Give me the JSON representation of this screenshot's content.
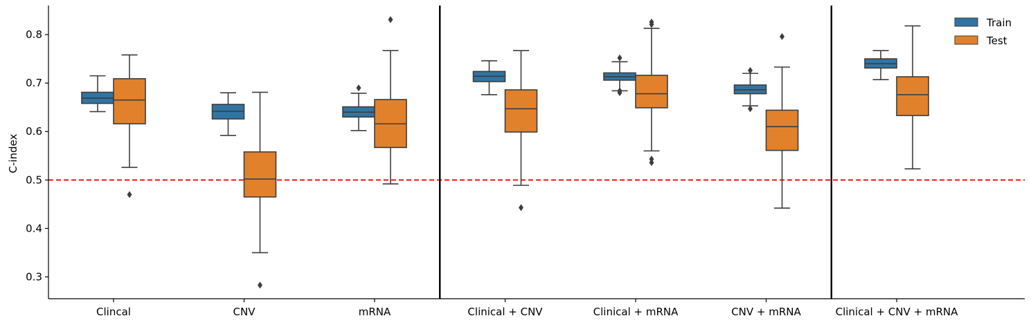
{
  "chart_data": {
    "type": "box",
    "ylabel": "C-index",
    "xlabel": "",
    "ylim": [
      0.255,
      0.86
    ],
    "yticks": [
      "0.3",
      "0.4",
      "0.5",
      "0.6",
      "0.7",
      "0.8"
    ],
    "categories": [
      "Clincal",
      "CNV",
      "mRNA",
      "Clinical + CNV",
      "Clinical + mRNA",
      "CNV + mRNA",
      "Clinical + CNV + mRNA"
    ],
    "reference_line": {
      "y": 0.5,
      "color": "#ff0000",
      "style": "dashed"
    },
    "separators_after_category_index": [
      2,
      5
    ],
    "legend": {
      "position": "top-right",
      "entries": [
        "Train",
        "Test"
      ]
    },
    "colors": {
      "Train": "#3274a1",
      "Test": "#e1812c",
      "box_edge": "#3d3d3d"
    },
    "series": [
      {
        "name": "Train",
        "boxes": [
          {
            "whislo": 0.641,
            "q1": 0.658,
            "med": 0.669,
            "q3": 0.681,
            "whishi": 0.715,
            "fliers": []
          },
          {
            "whislo": 0.592,
            "q1": 0.626,
            "med": 0.642,
            "q3": 0.656,
            "whishi": 0.68,
            "fliers": []
          },
          {
            "whislo": 0.602,
            "q1": 0.63,
            "med": 0.64,
            "q3": 0.651,
            "whishi": 0.679,
            "fliers": [
              0.69
            ]
          },
          {
            "whislo": 0.676,
            "q1": 0.703,
            "med": 0.714,
            "q3": 0.724,
            "whishi": 0.746,
            "fliers": []
          },
          {
            "whislo": 0.684,
            "q1": 0.706,
            "med": 0.713,
            "q3": 0.721,
            "whishi": 0.744,
            "fliers": [
              0.68,
              0.684,
              0.752
            ]
          },
          {
            "whislo": 0.653,
            "q1": 0.678,
            "med": 0.686,
            "q3": 0.696,
            "whishi": 0.72,
            "fliers": [
              0.647,
              0.726
            ]
          },
          {
            "whislo": 0.707,
            "q1": 0.731,
            "med": 0.74,
            "q3": 0.75,
            "whishi": 0.767,
            "fliers": []
          }
        ]
      },
      {
        "name": "Test",
        "boxes": [
          {
            "whislo": 0.526,
            "q1": 0.616,
            "med": 0.665,
            "q3": 0.709,
            "whishi": 0.758,
            "fliers": [
              0.47
            ]
          },
          {
            "whislo": 0.35,
            "q1": 0.465,
            "med": 0.502,
            "q3": 0.558,
            "whishi": 0.681,
            "fliers": [
              0.283
            ]
          },
          {
            "whislo": 0.492,
            "q1": 0.567,
            "med": 0.616,
            "q3": 0.666,
            "whishi": 0.767,
            "fliers": [
              0.831
            ]
          },
          {
            "whislo": 0.489,
            "q1": 0.599,
            "med": 0.647,
            "q3": 0.686,
            "whishi": 0.767,
            "fliers": [
              0.443
            ]
          },
          {
            "whislo": 0.56,
            "q1": 0.649,
            "med": 0.678,
            "q3": 0.716,
            "whishi": 0.813,
            "fliers": [
              0.536,
              0.543,
              0.821,
              0.826
            ]
          },
          {
            "whislo": 0.442,
            "q1": 0.561,
            "med": 0.61,
            "q3": 0.644,
            "whishi": 0.733,
            "fliers": [
              0.796
            ]
          },
          {
            "whislo": 0.523,
            "q1": 0.633,
            "med": 0.676,
            "q3": 0.713,
            "whishi": 0.818,
            "fliers": []
          }
        ]
      }
    ]
  }
}
